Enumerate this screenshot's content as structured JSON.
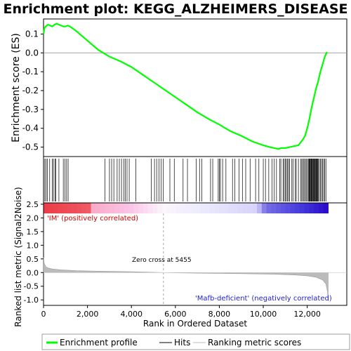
{
  "chart_data": {
    "type": "line",
    "title": "Enrichment plot: KEGG_ALZHEIMERS_DISEASE",
    "top_panel": {
      "ylabel": "Enrichment score (ES)",
      "ylim": [
        -0.55,
        0.18
      ],
      "yticks": [
        0.1,
        0.0,
        -0.1,
        -0.2,
        -0.3,
        -0.4,
        -0.5
      ],
      "ytick_labels": [
        "0.1",
        "0.0",
        "-0.1",
        "-0.2",
        "-0.3",
        "-0.4",
        "-0.5"
      ],
      "series": [
        {
          "name": "Enrichment profile",
          "color": "#00ff00",
          "x": [
            0,
            40,
            100,
            200,
            300,
            400,
            500,
            600,
            700,
            800,
            900,
            1000,
            1100,
            1200,
            1500,
            2000,
            2500,
            3000,
            3500,
            4000,
            4500,
            5000,
            5500,
            6000,
            6500,
            7000,
            7500,
            8000,
            8500,
            9000,
            9500,
            10000,
            10300,
            10500,
            10700,
            10800,
            11000,
            11200,
            11400,
            11600,
            11800,
            11900,
            12000,
            12100,
            12200,
            12300,
            12400,
            12500,
            12600,
            12700,
            12800,
            12900
          ],
          "y": [
            0.1,
            0.13,
            0.14,
            0.15,
            0.145,
            0.14,
            0.15,
            0.155,
            0.15,
            0.145,
            0.14,
            0.14,
            0.145,
            0.14,
            0.115,
            0.065,
            0.015,
            -0.02,
            -0.045,
            -0.075,
            -0.115,
            -0.155,
            -0.195,
            -0.235,
            -0.275,
            -0.315,
            -0.35,
            -0.38,
            -0.415,
            -0.44,
            -0.47,
            -0.49,
            -0.5,
            -0.505,
            -0.51,
            -0.505,
            -0.505,
            -0.5,
            -0.495,
            -0.49,
            -0.46,
            -0.44,
            -0.4,
            -0.35,
            -0.29,
            -0.24,
            -0.19,
            -0.15,
            -0.1,
            -0.06,
            -0.02,
            0.005
          ]
        }
      ]
    },
    "hits_panel": {
      "legend_label": "Hits",
      "hit_positions": [
        60,
        120,
        180,
        280,
        400,
        450,
        520,
        560,
        700,
        900,
        980,
        1050,
        1120,
        2800,
        3000,
        3100,
        3200,
        3350,
        3450,
        3550,
        3650,
        3720,
        3800,
        3900,
        4200,
        4900,
        5050,
        5150,
        5250,
        5350,
        5450,
        5750,
        5950,
        6350,
        6550,
        6950,
        7100,
        7200,
        7600,
        7700,
        7950,
        8000,
        8050,
        8150,
        8300,
        8600,
        8700,
        8900,
        9050,
        9200,
        9400,
        9650,
        9800,
        10000,
        10100,
        10250,
        10400,
        10500,
        10600,
        10750,
        10800,
        10900,
        10950,
        11000,
        11050,
        11100,
        11150,
        11200,
        11300,
        11350,
        11450,
        11500,
        11600,
        11700,
        11750,
        11800,
        11850,
        11900,
        11950,
        12000,
        12050,
        12080,
        12100,
        12130,
        12150,
        12180,
        12200,
        12230,
        12250,
        12280,
        12300,
        12330,
        12350,
        12380,
        12400,
        12430,
        12450,
        12480,
        12500,
        12550,
        12600,
        12650,
        12700,
        12750,
        12800,
        12850
      ]
    },
    "metric_panel": {
      "ylabel": "Ranked list metric (Signal2Noise)",
      "xlabel": "Rank in Ordered Dataset",
      "ylim": [
        -1.2,
        2.55
      ],
      "yticks": [
        2.5,
        2.0,
        1.5,
        1.0,
        0.5,
        0.0,
        -0.5,
        -1.0
      ],
      "ytick_labels": [
        "2.5",
        "2.0",
        "1.5",
        "1.0",
        "0.5",
        "0.0",
        "-0.5",
        "-1.0"
      ],
      "xlim": [
        0,
        13800
      ],
      "xticks": [
        0,
        2000,
        4000,
        6000,
        8000,
        10000,
        12000
      ],
      "xtick_labels": [
        "0",
        "2,000",
        "4,000",
        "6,000",
        "8,000",
        "10,000",
        "12,000"
      ],
      "series": [
        {
          "name": "Ranking metric scores",
          "color": "#bbbbbb",
          "x": [
            0,
            30,
            100,
            200,
            400,
            800,
            1500,
            2500,
            4000,
            5455,
            7000,
            9000,
            10500,
            11500,
            12000,
            12400,
            12700,
            12850,
            12920,
            12950
          ],
          "y": [
            0.55,
            0.35,
            0.22,
            0.17,
            0.13,
            0.1,
            0.07,
            0.05,
            0.03,
            0.0,
            -0.02,
            -0.04,
            -0.06,
            -0.09,
            -0.12,
            -0.17,
            -0.27,
            -0.42,
            -0.7,
            -1.05
          ]
        }
      ],
      "zero_cross_label": "Zero cross at 5455",
      "zero_cross_x": 5455,
      "pos_label": "'IM' (positively correlated)",
      "neg_label": "'Mafb-deficient' (negatively correlated)",
      "n_total": 12950
    },
    "legend": [
      {
        "label": "Enrichment profile",
        "color": "#00ff00"
      },
      {
        "label": "Hits",
        "color": "#000000"
      },
      {
        "label": "Ranking metric scores",
        "color": "#bbbbbb"
      }
    ]
  }
}
